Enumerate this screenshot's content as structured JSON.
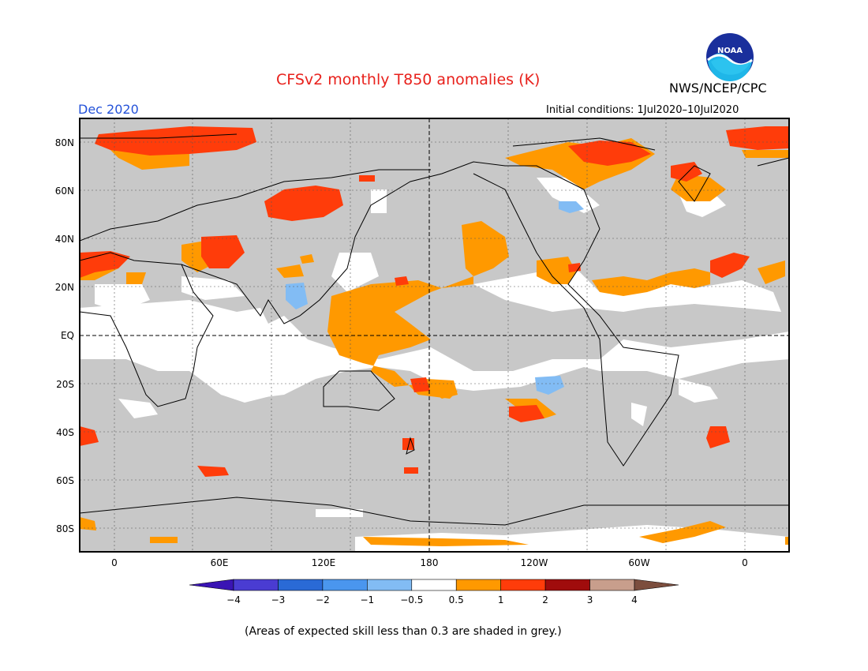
{
  "title": "CFSv2 monthly T850 anomalies (K)",
  "organization": "NWS/NCEP/CPC",
  "logo_text": "NOAA",
  "valid_month": "Dec 2020",
  "initial_conditions": "Initial conditions: 1Jul2020–10Jul2020",
  "footnote": "(Areas of expected skill less than 0.3 are shaded in grey.)",
  "map": {
    "lon_labels": [
      "0",
      "60E",
      "120E",
      "180",
      "120W",
      "60W",
      "0"
    ],
    "lat_labels": [
      "80N",
      "60N",
      "40N",
      "20N",
      "EQ",
      "20S",
      "40S",
      "60S",
      "80S"
    ],
    "colors": {
      "low_skill": "#c8c8c8",
      "neutral": "#ffffff",
      "frame": "#000000"
    }
  },
  "colorbar": {
    "labels": [
      "−4",
      "−3",
      "−2",
      "−1",
      "−0.5",
      "0.5",
      "1",
      "2",
      "3",
      "4"
    ],
    "colors": [
      "#3a14b4",
      "#4a3cd2",
      "#2a6ad6",
      "#4a96ee",
      "#82bcf4",
      "#ffffff",
      "#ff9900",
      "#ff3c0a",
      "#a00c0c",
      "#c89e8c",
      "#7c4e3e"
    ]
  }
}
